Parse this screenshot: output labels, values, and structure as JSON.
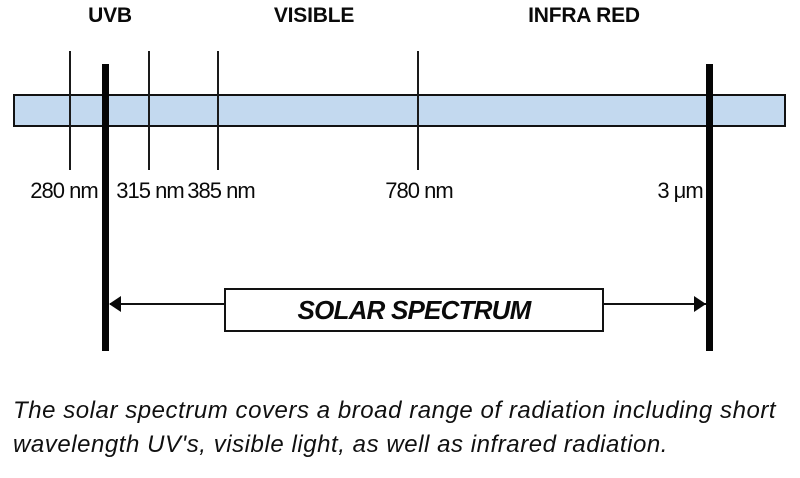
{
  "diagram": {
    "region_labels": [
      {
        "label": "UVB"
      },
      {
        "label": "VISIBLE"
      },
      {
        "label": "INFRA RED"
      }
    ],
    "wavelength_labels": [
      {
        "label": "280 nm"
      },
      {
        "label": "315 nm"
      },
      {
        "label": "385 nm"
      },
      {
        "label": "780 nm"
      },
      {
        "label": "3 μm"
      }
    ],
    "solar_spectrum_box_label": "SOLAR SPECTRUM",
    "colors": {
      "bar_fill": "#c3d9ef",
      "line": "#000000"
    }
  },
  "caption": {
    "line1": "The solar spectrum covers a broad range of radiation including short",
    "line2": "wavelength UV's, visible light, as well as infrared radiation."
  }
}
